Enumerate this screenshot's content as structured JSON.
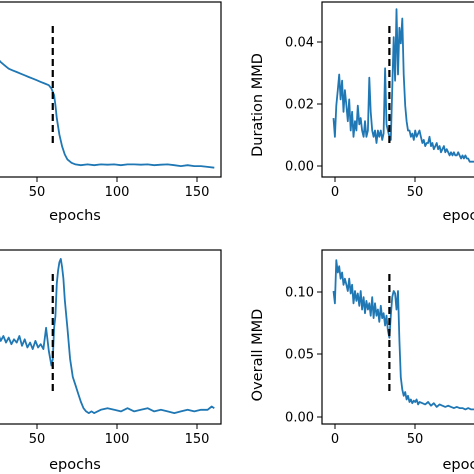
{
  "chart_data": [
    {
      "type": "line",
      "xlabel": "epochs",
      "ylabel": "",
      "x_ticks": [
        "50",
        "100",
        "150"
      ],
      "y_ticks": [],
      "xlim": [
        -8,
        165
      ],
      "ylim": [
        0,
        1
      ],
      "vline_x": 39,
      "series": [
        {
          "color": "#1f77b4",
          "x": [
            -8,
            -5,
            -2,
            0,
            3,
            6,
            9,
            12,
            15,
            18,
            21,
            24,
            27,
            30,
            33,
            36,
            38,
            40,
            41,
            42,
            44,
            46,
            48,
            50,
            53,
            56,
            60,
            65,
            70,
            75,
            80,
            85,
            90,
            95,
            100,
            105,
            110,
            115,
            120,
            125,
            130,
            135,
            140,
            145,
            150,
            155,
            160
          ],
          "y": [
            0.74,
            0.7,
            0.68,
            0.66,
            0.64,
            0.62,
            0.61,
            0.6,
            0.59,
            0.58,
            0.57,
            0.56,
            0.55,
            0.54,
            0.53,
            0.52,
            0.5,
            0.46,
            0.4,
            0.32,
            0.22,
            0.15,
            0.1,
            0.07,
            0.05,
            0.04,
            0.035,
            0.04,
            0.035,
            0.04,
            0.038,
            0.04,
            0.035,
            0.04,
            0.04,
            0.038,
            0.04,
            0.035,
            0.038,
            0.04,
            0.035,
            0.03,
            0.035,
            0.03,
            0.03,
            0.025,
            0.02
          ]
        }
      ]
    },
    {
      "type": "line",
      "xlabel": "epoc",
      "ylabel": "Duration MMD",
      "x_ticks": [
        "0",
        "50"
      ],
      "y_ticks": [
        "0.00",
        "0.02",
        "0.04"
      ],
      "xlim": [
        -8,
        105
      ],
      "ylim": [
        -0.001,
        0.052
      ],
      "vline_x": 39,
      "series": [
        {
          "color": "#1f77b4",
          "x": [
            0,
            1,
            2,
            3,
            4,
            5,
            6,
            7,
            8,
            9,
            10,
            11,
            12,
            13,
            14,
            15,
            16,
            17,
            18,
            19,
            20,
            21,
            22,
            23,
            24,
            25,
            26,
            27,
            28,
            29,
            30,
            31,
            32,
            33,
            34,
            35,
            36,
            37,
            38,
            39,
            40,
            41,
            42,
            43,
            44,
            45,
            46,
            47,
            48,
            49,
            50,
            51,
            52,
            53,
            54,
            55,
            56,
            57,
            58,
            59,
            60,
            61,
            62,
            63,
            64,
            65,
            66,
            67,
            68,
            69,
            70,
            71,
            72,
            73,
            74,
            75,
            76,
            77,
            78,
            79,
            80,
            81,
            82,
            83,
            84,
            85,
            86,
            87,
            88,
            89,
            90,
            91,
            92,
            93,
            94,
            95,
            96,
            97,
            98
          ],
          "y": [
            0.016,
            0.01,
            0.02,
            0.025,
            0.03,
            0.022,
            0.028,
            0.018,
            0.025,
            0.02,
            0.015,
            0.022,
            0.012,
            0.018,
            0.01,
            0.015,
            0.012,
            0.02,
            0.014,
            0.016,
            0.012,
            0.01,
            0.015,
            0.01,
            0.012,
            0.029,
            0.018,
            0.012,
            0.01,
            0.012,
            0.008,
            0.012,
            0.01,
            0.012,
            0.009,
            0.011,
            0.032,
            0.014,
            0.012,
            0.01,
            0.009,
            0.025,
            0.042,
            0.028,
            0.051,
            0.03,
            0.045,
            0.04,
            0.048,
            0.03,
            0.02,
            0.015,
            0.012,
            0.012,
            0.01,
            0.011,
            0.009,
            0.012,
            0.01,
            0.011,
            0.012,
            0.01,
            0.008,
            0.009,
            0.007,
            0.008,
            0.008,
            0.01,
            0.007,
            0.008,
            0.006,
            0.007,
            0.008,
            0.006,
            0.007,
            0.005,
            0.006,
            0.007,
            0.005,
            0.006,
            0.005,
            0.004,
            0.005,
            0.004,
            0.005,
            0.004,
            0.004,
            0.005,
            0.004,
            0.003,
            0.004,
            0.003,
            0.004,
            0.003,
            0.003,
            0.002,
            0.002,
            0.002,
            0.002
          ]
        }
      ]
    },
    {
      "type": "line",
      "xlabel": "epochs",
      "ylabel": "",
      "x_ticks": [
        "50",
        "100",
        "150"
      ],
      "y_ticks": [],
      "xlim": [
        -8,
        165
      ],
      "ylim": [
        0,
        1
      ],
      "vline_x": 39,
      "series": [
        {
          "color": "#1f77b4",
          "x": [
            -8,
            -6,
            -4,
            -2,
            0,
            2,
            4,
            6,
            8,
            10,
            12,
            14,
            16,
            18,
            20,
            22,
            24,
            26,
            28,
            30,
            32,
            34,
            36,
            38,
            39,
            40,
            41,
            42,
            43,
            44,
            45,
            46,
            47,
            48,
            50,
            52,
            54,
            56,
            58,
            60,
            62,
            64,
            66,
            68,
            70,
            75,
            80,
            85,
            90,
            95,
            100,
            105,
            110,
            115,
            120,
            125,
            130,
            135,
            140,
            145,
            150,
            155,
            158,
            160
          ],
          "y": [
            0.52,
            0.5,
            0.48,
            0.52,
            0.47,
            0.5,
            0.46,
            0.49,
            0.45,
            0.48,
            0.46,
            0.5,
            0.44,
            0.48,
            0.43,
            0.46,
            0.42,
            0.47,
            0.43,
            0.45,
            0.42,
            0.55,
            0.41,
            0.32,
            0.36,
            0.55,
            0.62,
            0.82,
            0.9,
            0.95,
            0.97,
            0.92,
            0.85,
            0.72,
            0.55,
            0.36,
            0.25,
            0.2,
            0.15,
            0.1,
            0.06,
            0.04,
            0.03,
            0.04,
            0.03,
            0.05,
            0.06,
            0.05,
            0.04,
            0.06,
            0.04,
            0.05,
            0.06,
            0.04,
            0.05,
            0.04,
            0.03,
            0.04,
            0.05,
            0.04,
            0.05,
            0.05,
            0.07,
            0.06
          ]
        }
      ]
    },
    {
      "type": "line",
      "xlabel": "epoc",
      "ylabel": "Overall MMD",
      "x_ticks": [
        "0",
        "50"
      ],
      "y_ticks": [
        "0.00",
        "0.05",
        "0.10"
      ],
      "xlim": [
        -8,
        105
      ],
      "ylim": [
        -0.003,
        0.13
      ],
      "vline_x": 39,
      "series": [
        {
          "color": "#1f77b4",
          "x": [
            0,
            1,
            2,
            3,
            4,
            5,
            6,
            7,
            8,
            9,
            10,
            11,
            12,
            13,
            14,
            15,
            16,
            17,
            18,
            19,
            20,
            21,
            22,
            23,
            24,
            25,
            26,
            27,
            28,
            29,
            30,
            31,
            32,
            33,
            34,
            35,
            36,
            37,
            38,
            39,
            40,
            41,
            42,
            43,
            44,
            45,
            46,
            47,
            48,
            49,
            50,
            51,
            52,
            53,
            54,
            55,
            56,
            57,
            58,
            59,
            60,
            62,
            64,
            66,
            68,
            70,
            72,
            74,
            76,
            78,
            80,
            82,
            84,
            86,
            88,
            90,
            92,
            94,
            96,
            98
          ],
          "y": [
            0.1,
            0.09,
            0.125,
            0.115,
            0.12,
            0.11,
            0.115,
            0.105,
            0.11,
            0.105,
            0.1,
            0.11,
            0.098,
            0.105,
            0.09,
            0.1,
            0.092,
            0.098,
            0.088,
            0.1,
            0.085,
            0.095,
            0.082,
            0.092,
            0.085,
            0.09,
            0.08,
            0.095,
            0.078,
            0.09,
            0.08,
            0.085,
            0.075,
            0.088,
            0.078,
            0.082,
            0.072,
            0.08,
            0.068,
            0.062,
            0.08,
            0.095,
            0.1,
            0.098,
            0.085,
            0.1,
            0.06,
            0.03,
            0.02,
            0.015,
            0.018,
            0.012,
            0.015,
            0.01,
            0.012,
            0.009,
            0.011,
            0.01,
            0.012,
            0.008,
            0.01,
            0.009,
            0.008,
            0.01,
            0.007,
            0.009,
            0.006,
            0.008,
            0.007,
            0.006,
            0.007,
            0.006,
            0.005,
            0.006,
            0.005,
            0.005,
            0.004,
            0.005,
            0.004,
            0.004
          ]
        }
      ]
    }
  ]
}
